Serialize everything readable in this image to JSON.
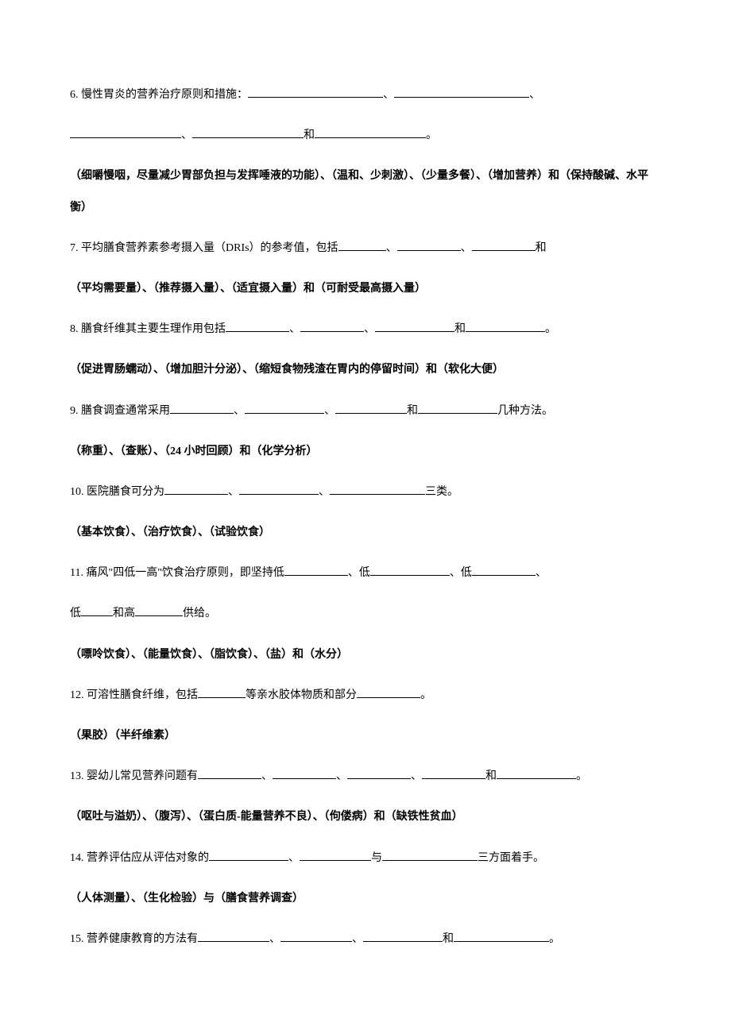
{
  "q6": {
    "text_part1": "6. 慢性胃炎的营养治疗原则和措施：",
    "separator1": "、",
    "separator2": "、",
    "separator3": "、",
    "conj": "和",
    "end": "。",
    "answer": "（细嚼慢咽，尽量减少胃部负担与发挥唾液的功能）、（温和、少刺激）、（少量多餐）、（增加营养）和（保持酸碱、水平衡）"
  },
  "q7": {
    "text_part1": "7. 平均膳食营养素参考摄入量（DRIs）的参考值，包括",
    "separator": "、",
    "conj": "和",
    "answer": "（平均需要量）、（推荐摄入量）、（适宜摄入量）和（可耐受最高摄入量）"
  },
  "q8": {
    "text_part1": "8. 膳食纤维其主要生理作用包括",
    "separator": "、",
    "conj": "和",
    "end": "。",
    "answer": "（促进胃肠蠕动）、（增加胆汁分泌）、（缩短食物残渣在胃内的停留时间）和（软化大便）"
  },
  "q9": {
    "text_part1": "9. 膳食调查通常采用",
    "separator": "、",
    "conj": "和",
    "text_part2": "几种方法。",
    "answer": "（称重）、（查账）、（24 小时回顾）和（化学分析）"
  },
  "q10": {
    "text_part1": "10. 医院膳食可分为",
    "separator": "、",
    "text_part2": "三类。",
    "answer": "（基本饮食）、（治疗饮食）、（试验饮食）"
  },
  "q11": {
    "text_part1": "11. 痛风\"四低一高\"饮食治疗原则，即坚持低",
    "text_part2": "、低",
    "text_part3": "、低",
    "text_part4": "、",
    "text_part5": "低",
    "conj": "和高",
    "text_part6": "供给。",
    "answer": "（嘌呤饮食）、（能量饮食）、（脂饮食）、（盐）和（水分）"
  },
  "q12": {
    "text_part1": "12. 可溶性膳食纤维，包括",
    "text_part2": "等亲水胶体物质和部分",
    "end": "。",
    "answer": "（果胶）（半纤维素）"
  },
  "q13": {
    "text_part1": "13. 婴幼儿常见营养问题有",
    "separator": "、",
    "conj": "和",
    "end": "。",
    "answer": "（呕吐与溢奶）、（腹泻）、（蛋白质-能量营养不良）、（佝偻病）和（缺铁性贫血）"
  },
  "q14": {
    "text_part1": "14. 营养评估应从评估对象的",
    "separator": "、",
    "conj": "与",
    "text_part2": "三方面着手。",
    "answer": "（人体测量）、（生化检验）与（膳食营养调查）"
  },
  "q15": {
    "text_part1": "15. 营养健康教育的方法有",
    "separator": "、",
    "conj": "和",
    "end": "。"
  }
}
